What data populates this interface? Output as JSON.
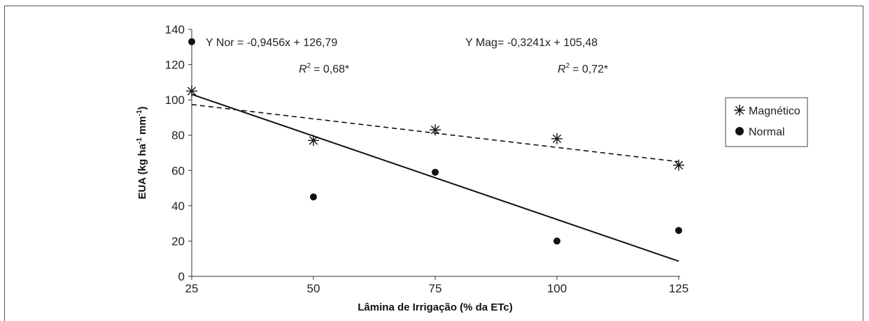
{
  "chart_data": {
    "type": "scatter",
    "xlabel": "Lâmina de Irrigação (% da ETc)",
    "ylabel": "EUA (kg ha-1 mm-1)",
    "xlim": [
      25,
      125
    ],
    "ylim": [
      0,
      140
    ],
    "x_ticks": [
      25,
      50,
      75,
      100,
      125
    ],
    "y_ticks": [
      0,
      20,
      40,
      60,
      80,
      100,
      120,
      140
    ],
    "grid": false,
    "legend_position": "right",
    "series": [
      {
        "name": "Magnético",
        "marker": "asterisk",
        "x": [
          25,
          50,
          75,
          100,
          125
        ],
        "y": [
          105,
          77,
          83,
          78,
          63
        ],
        "trendline": {
          "slope": -0.3241,
          "intercept": 105.48,
          "style": "dashed"
        }
      },
      {
        "name": "Normal",
        "marker": "filled-circle",
        "x": [
          25,
          50,
          75,
          100,
          125
        ],
        "y": [
          133,
          45,
          59,
          20,
          26
        ],
        "trendline": {
          "slope": -0.9456,
          "intercept": 126.79,
          "style": "solid"
        }
      }
    ],
    "annotations": {
      "nor_equation": "Y Nor = -0,9456x + 126,79",
      "nor_r2_value": "= 0,68*",
      "mag_equation": "Y Mag= -0,3241x + 105,48",
      "mag_r2_value": "= 0,72*",
      "r2_label": "R",
      "r2_sup": "2"
    },
    "ylabel_parts": {
      "base": "EUA (kg ha",
      "sup1": "-1",
      "mid": " mm",
      "sup2": "-1",
      "end": ")"
    }
  }
}
